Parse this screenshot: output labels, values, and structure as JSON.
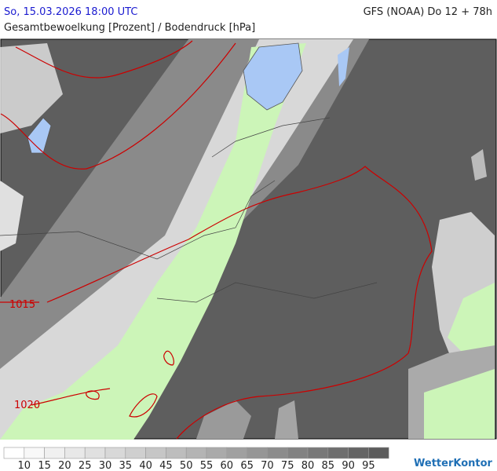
{
  "header": {
    "datetime": "So, 15.03.2026 18:00 UTC",
    "model": "GFS (NOAA) Do 12 + 78h",
    "title": "Gesamtbewoelkung [Prozent] / Bodendruck [hPa]"
  },
  "isobars": [
    {
      "label": "1015"
    },
    {
      "label": "1020"
    }
  ],
  "legend": {
    "levels": [
      10,
      15,
      20,
      25,
      30,
      35,
      40,
      45,
      50,
      55,
      60,
      65,
      70,
      75,
      80,
      85,
      90,
      95
    ],
    "colors": [
      "#ffffff",
      "#f8f8f8",
      "#f0f0f0",
      "#e8e8e8",
      "#e0e0e0",
      "#d8d8d8",
      "#cfcfcf",
      "#c6c6c6",
      "#bdbdbd",
      "#b4b4b4",
      "#aaaaaa",
      "#a0a0a0",
      "#969696",
      "#8c8c8c",
      "#828282",
      "#787878",
      "#6e6e6e",
      "#646464",
      "#5c5c5c"
    ]
  },
  "brand": "WetterKontor"
}
